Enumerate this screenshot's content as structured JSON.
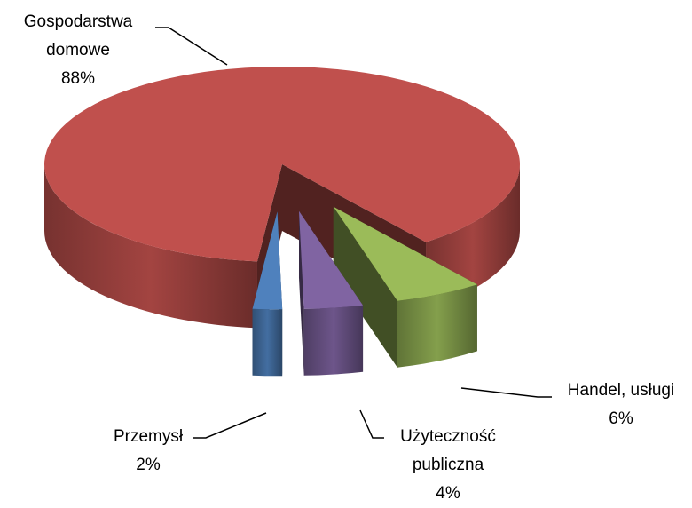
{
  "chart_data": {
    "type": "pie",
    "categories": [
      "Gospodarstwa domowe",
      "Handel, usługi",
      "Użyteczność publiczna",
      "Przemysł"
    ],
    "values": [
      88,
      6,
      4,
      2
    ],
    "value_labels": [
      "88%",
      "6%",
      "4%",
      "2%"
    ],
    "colors": [
      "#C0504D",
      "#9BBB59",
      "#8064A2",
      "#4F81BD"
    ]
  }
}
